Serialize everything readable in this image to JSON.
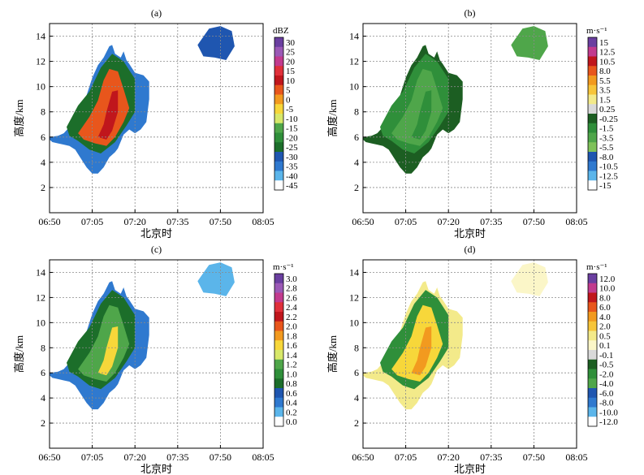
{
  "chart_data": [
    {
      "type": "heatmap",
      "panel_label": "(a)",
      "xlabel": "北京时",
      "ylabel": "高度/km",
      "x_ticks": [
        "06:50",
        "07:05",
        "07:20",
        "07:35",
        "07:50",
        "08:05"
      ],
      "y_ticks": [
        "2",
        "4",
        "6",
        "8",
        "10",
        "12",
        "14"
      ],
      "ylim": [
        0,
        15
      ],
      "grid": true,
      "colorbar": {
        "unit": "dBZ",
        "labels": [
          "30",
          "25",
          "20",
          "15",
          "10",
          "5",
          "0",
          "-5",
          "-10",
          "-15",
          "-20",
          "-25",
          "-30",
          "-35",
          "-40",
          "-45"
        ],
        "colors": [
          "#6a3fa0",
          "#9b59b6",
          "#c23b8e",
          "#e0303a",
          "#c0161c",
          "#e8561c",
          "#f29a1f",
          "#f7d73a",
          "#d8e86a",
          "#4fa64a",
          "#2f8f3a",
          "#1c6e2a",
          "#1f56b0",
          "#2f79cf",
          "#5bb5ea",
          "#ffffff"
        ]
      }
    },
    {
      "type": "heatmap",
      "panel_label": "(b)",
      "xlabel": "北京时",
      "ylabel": "高度/km",
      "x_ticks": [
        "06:50",
        "07:05",
        "07:20",
        "07:35",
        "07:50",
        "08:05"
      ],
      "y_ticks": [
        "2",
        "4",
        "6",
        "8",
        "10",
        "12",
        "14"
      ],
      "ylim": [
        0,
        15
      ],
      "grid": true,
      "colorbar": {
        "unit": "m·s⁻¹",
        "labels": [
          "15",
          "12.5",
          "10.5",
          "8.0",
          "5.5",
          "3.5",
          "1.5",
          "0.25",
          "-0.25",
          "-1.5",
          "-3.5",
          "-5.5",
          "-8.0",
          "-10.5",
          "-12.5",
          "-15"
        ],
        "colors": [
          "#6a3fa0",
          "#c23b8e",
          "#c0161c",
          "#e8561c",
          "#f29a1f",
          "#f7c53a",
          "#f3ea8a",
          "#d9d9d9",
          "#1c5e22",
          "#2f8f3a",
          "#4fa64a",
          "#7fc25a",
          "#1f56b0",
          "#2f79cf",
          "#5bb5ea",
          "#ffffff"
        ]
      }
    },
    {
      "type": "heatmap",
      "panel_label": "(c)",
      "xlabel": "北京时",
      "ylabel": "高度/km",
      "x_ticks": [
        "06:50",
        "07:05",
        "07:20",
        "07:35",
        "07:50",
        "08:05"
      ],
      "y_ticks": [
        "2",
        "4",
        "6",
        "8",
        "10",
        "12",
        "14"
      ],
      "ylim": [
        0,
        15
      ],
      "grid": true,
      "colorbar": {
        "unit": "m·s⁻¹",
        "labels": [
          "3.0",
          "2.8",
          "2.6",
          "2.4",
          "2.2",
          "2.0",
          "1.8",
          "1.6",
          "1.4",
          "1.2",
          "1.0",
          "0.8",
          "0.6",
          "0.4",
          "0.2",
          "0.0"
        ],
        "colors": [
          "#6a3fa0",
          "#9b59b6",
          "#c23b8e",
          "#e0303a",
          "#c0161c",
          "#e8561c",
          "#f29a1f",
          "#f7d73a",
          "#d8e86a",
          "#4fa64a",
          "#2f8f3a",
          "#1c6e2a",
          "#1f56b0",
          "#2f79cf",
          "#5bb5ea",
          "#ffffff"
        ]
      }
    },
    {
      "type": "heatmap",
      "panel_label": "(d)",
      "xlabel": "北京时",
      "ylabel": "高度/km",
      "x_ticks": [
        "06:50",
        "07:05",
        "07:20",
        "07:35",
        "07:50",
        "08:05"
      ],
      "y_ticks": [
        "2",
        "4",
        "6",
        "8",
        "10",
        "12",
        "14"
      ],
      "ylim": [
        0,
        15
      ],
      "grid": true,
      "colorbar": {
        "unit": "m·s⁻¹",
        "labels": [
          "12.0",
          "10.0",
          "8.0",
          "6.0",
          "4.0",
          "2.0",
          "0.5",
          "0.1",
          "-0.1",
          "-0.5",
          "-2.0",
          "-4.0",
          "-6.0",
          "-8.0",
          "-10.0",
          "-12.0"
        ],
        "colors": [
          "#6a3fa0",
          "#c23b8e",
          "#c0161c",
          "#e8561c",
          "#f29a1f",
          "#f7c53a",
          "#f3ea8a",
          "#fbf6c8",
          "#d9d9d9",
          "#1c5e22",
          "#2f8f3a",
          "#4fa64a",
          "#1f56b0",
          "#2f79cf",
          "#5bb5ea",
          "#ffffff"
        ]
      }
    }
  ]
}
